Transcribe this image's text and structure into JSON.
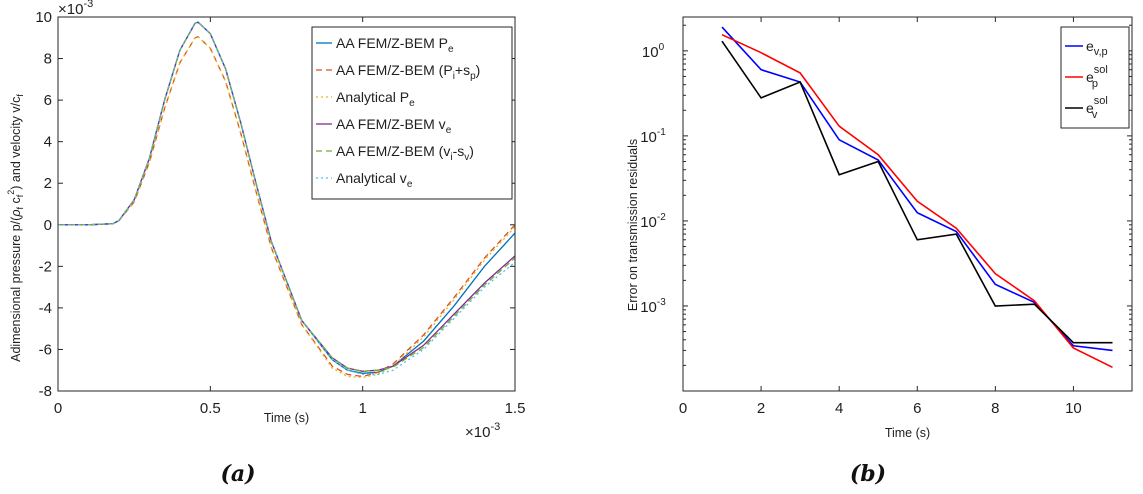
{
  "chart_data": [
    {
      "type": "line",
      "xlabel": "Time (s)",
      "x_exponent_label": "×10",
      "x_exponent": "-3",
      "y_exponent_label": "×10",
      "y_exponent": "-3",
      "xlim": [
        0,
        1.5
      ],
      "ylim": [
        -8,
        10
      ],
      "x_ticks": [
        "0",
        "0.5",
        "1",
        "1.5"
      ],
      "y_ticks": [
        "-8",
        "-6",
        "-4",
        "-2",
        "0",
        "2",
        "4",
        "6",
        "8",
        "10"
      ],
      "legend_position": "top-right",
      "series": [
        {
          "name": "AA FEM/Z-BEM P",
          "sub": "e",
          "color": "#0072BD",
          "dash": "",
          "x": [
            0,
            0.1,
            0.18,
            0.2,
            0.25,
            0.3,
            0.35,
            0.4,
            0.45,
            0.46,
            0.5,
            0.55,
            0.6,
            0.65,
            0.7,
            0.8,
            0.9,
            0.95,
            1.0,
            1.05,
            1.1,
            1.2,
            1.3,
            1.4,
            1.5
          ],
          "y": [
            0,
            0,
            0.05,
            0.2,
            1.2,
            3.2,
            6.0,
            8.4,
            9.7,
            9.75,
            9.2,
            7.5,
            4.9,
            2.0,
            -0.8,
            -4.6,
            -6.5,
            -7.0,
            -7.15,
            -7.1,
            -6.8,
            -5.6,
            -3.9,
            -2.0,
            -0.4
          ]
        },
        {
          "name": "AA FEM/Z-BEM (P",
          "sub": "i",
          "mid": "+s",
          "sub2": "p",
          "tail": ")",
          "color": "#D95319",
          "dash": "6,4",
          "x": [
            0,
            0.1,
            0.18,
            0.2,
            0.25,
            0.3,
            0.35,
            0.4,
            0.45,
            0.46,
            0.5,
            0.55,
            0.6,
            0.65,
            0.7,
            0.8,
            0.9,
            0.95,
            1.0,
            1.05,
            1.1,
            1.2,
            1.3,
            1.4,
            1.5
          ],
          "y": [
            0,
            0,
            0.05,
            0.2,
            1.1,
            3.0,
            5.6,
            7.8,
            9.0,
            9.05,
            8.5,
            6.9,
            4.4,
            1.6,
            -1.1,
            -4.8,
            -6.8,
            -7.2,
            -7.3,
            -7.1,
            -6.7,
            -5.3,
            -3.5,
            -1.6,
            0.0
          ]
        },
        {
          "name": "Analytical P",
          "sub": "e",
          "color": "#EDB120",
          "dash": "2,3",
          "x": [
            0,
            0.1,
            0.18,
            0.2,
            0.25,
            0.3,
            0.35,
            0.4,
            0.45,
            0.46,
            0.5,
            0.55,
            0.6,
            0.65,
            0.7,
            0.8,
            0.9,
            0.95,
            1.0,
            1.05,
            1.1,
            1.2,
            1.3,
            1.4,
            1.5
          ],
          "y": [
            0,
            0,
            0.05,
            0.2,
            1.1,
            3.0,
            5.6,
            7.8,
            9.0,
            9.05,
            8.5,
            6.9,
            4.4,
            1.6,
            -1.1,
            -4.8,
            -6.9,
            -7.3,
            -7.35,
            -7.2,
            -6.8,
            -5.4,
            -3.6,
            -1.7,
            -0.1
          ]
        },
        {
          "name": "AA FEM/Z-BEM v",
          "sub": "e",
          "color": "#7E2F8E",
          "dash": "",
          "x": [
            0,
            0.1,
            0.18,
            0.2,
            0.25,
            0.3,
            0.35,
            0.4,
            0.45,
            0.46,
            0.5,
            0.55,
            0.6,
            0.65,
            0.7,
            0.8,
            0.9,
            0.95,
            1.0,
            1.05,
            1.1,
            1.2,
            1.3,
            1.4,
            1.5
          ],
          "y": [
            0,
            0,
            0.05,
            0.2,
            1.2,
            3.2,
            6.0,
            8.4,
            9.7,
            9.75,
            9.2,
            7.5,
            4.9,
            2.0,
            -0.8,
            -4.6,
            -6.4,
            -6.9,
            -7.05,
            -7.0,
            -6.8,
            -5.8,
            -4.3,
            -2.8,
            -1.5
          ]
        },
        {
          "name": "AA FEM/Z-BEM (v",
          "sub": "i",
          "mid": "-s",
          "sub2": "v",
          "tail": ")",
          "color": "#77AC30",
          "dash": "6,4",
          "x": [
            0,
            0.1,
            0.18,
            0.2,
            0.25,
            0.3,
            0.35,
            0.4,
            0.45,
            0.46,
            0.5,
            0.55,
            0.6,
            0.65,
            0.7,
            0.8,
            0.9,
            0.95,
            1.0,
            1.05,
            1.1,
            1.2,
            1.3,
            1.4,
            1.5
          ],
          "y": [
            0,
            0,
            0.05,
            0.2,
            1.2,
            3.2,
            6.0,
            8.4,
            9.7,
            9.75,
            9.2,
            7.5,
            4.9,
            2.0,
            -0.8,
            -4.6,
            -6.4,
            -6.9,
            -7.05,
            -7.0,
            -6.85,
            -5.9,
            -4.4,
            -2.9,
            -1.6
          ]
        },
        {
          "name": "Analytical v",
          "sub": "e",
          "color": "#4DBEEE",
          "dash": "2,3",
          "x": [
            0,
            0.1,
            0.18,
            0.2,
            0.25,
            0.3,
            0.35,
            0.4,
            0.45,
            0.46,
            0.5,
            0.55,
            0.6,
            0.65,
            0.7,
            0.8,
            0.9,
            0.95,
            1.0,
            1.05,
            1.1,
            1.2,
            1.3,
            1.4,
            1.5
          ],
          "y": [
            0,
            0,
            0.05,
            0.2,
            1.2,
            3.2,
            6.0,
            8.4,
            9.7,
            9.75,
            9.2,
            7.5,
            4.9,
            2.0,
            -0.8,
            -4.6,
            -6.5,
            -7.0,
            -7.2,
            -7.2,
            -7.0,
            -6.0,
            -4.5,
            -3.0,
            -1.8
          ]
        }
      ],
      "caption": "(a)"
    },
    {
      "type": "line",
      "xlabel": "Time (s)",
      "ylabel": "Error on transmission residuals",
      "yscale": "log",
      "xlim": [
        0,
        11.5
      ],
      "ylim": [
        0.0001,
        2.5
      ],
      "x_ticks": [
        "0",
        "2",
        "4",
        "6",
        "8",
        "10"
      ],
      "y_tick_base": "10",
      "y_tick_exponents": [
        "-3",
        "-2",
        "-1",
        "0"
      ],
      "legend_position": "top-right",
      "series": [
        {
          "name": "e",
          "sub": "v,p",
          "color": "#0000FF",
          "x": [
            1,
            2,
            3,
            4,
            5,
            6,
            7,
            8,
            9,
            10,
            11
          ],
          "y": [
            1.9,
            0.6,
            0.43,
            0.09,
            0.052,
            0.0125,
            0.0075,
            0.0018,
            0.0011,
            0.00034,
            0.0003
          ]
        },
        {
          "name": "e",
          "sub": "p",
          "sup": "sol",
          "color": "#FF0000",
          "x": [
            1,
            2,
            3,
            4,
            5,
            6,
            7,
            8,
            9,
            10,
            11
          ],
          "y": [
            1.55,
            0.95,
            0.55,
            0.13,
            0.06,
            0.017,
            0.0082,
            0.0024,
            0.00115,
            0.00032,
            0.00019
          ]
        },
        {
          "name": "e",
          "sub": "v",
          "sup": "sol",
          "color": "#000000",
          "x": [
            1,
            2,
            3,
            4,
            5,
            6,
            7,
            8,
            9,
            10,
            11
          ],
          "y": [
            1.3,
            0.28,
            0.43,
            0.035,
            0.05,
            0.006,
            0.007,
            0.001,
            0.00105,
            0.00037,
            0.00037
          ]
        }
      ],
      "caption": "(b)"
    }
  ]
}
